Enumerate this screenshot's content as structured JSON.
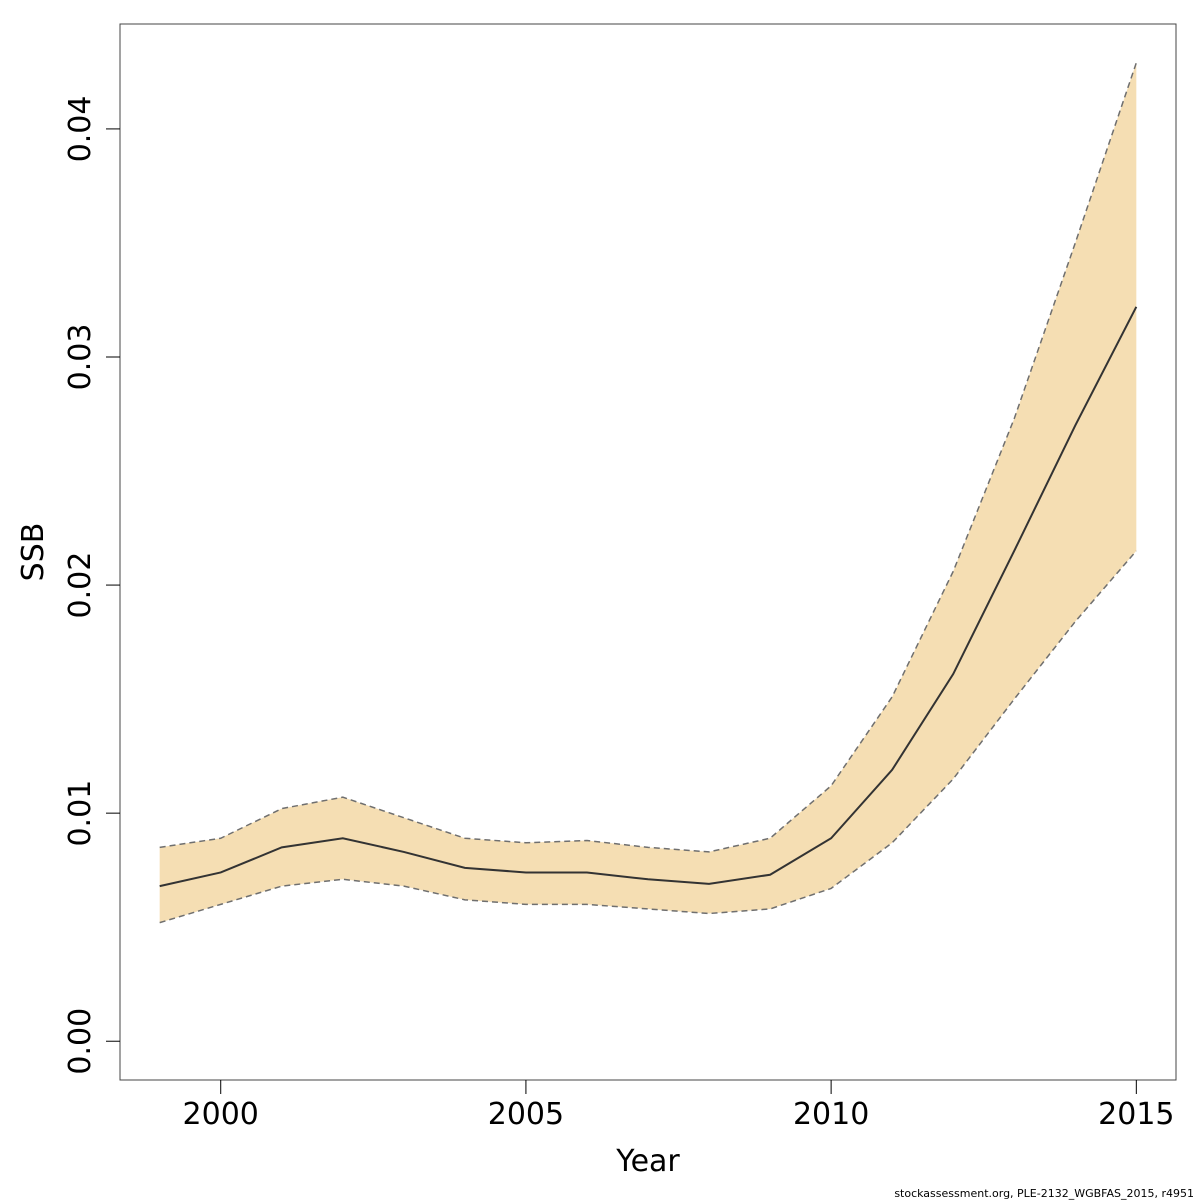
{
  "chart_data": {
    "type": "area",
    "title": "",
    "xlabel": "Year",
    "ylabel": "SSB",
    "xlim": [
      1998.35,
      2015.65
    ],
    "ylim": [
      -0.0017,
      0.0446
    ],
    "xticks": [
      2000,
      2005,
      2010,
      2015
    ],
    "yticks": [
      0.0,
      0.01,
      0.02,
      0.03,
      0.04
    ],
    "ytick_labels": [
      "0.00",
      "0.01",
      "0.02",
      "0.03",
      "0.04"
    ],
    "grid": false,
    "legend": "none",
    "x": [
      1999,
      2000,
      2001,
      2002,
      2003,
      2004,
      2005,
      2006,
      2007,
      2008,
      2009,
      2010,
      2011,
      2012,
      2013,
      2014,
      2015
    ],
    "series": [
      {
        "role": "estimate",
        "style": "solid",
        "values": [
          0.0068,
          0.0074,
          0.0085,
          0.0089,
          0.0083,
          0.0076,
          0.0074,
          0.0074,
          0.0071,
          0.0069,
          0.0073,
          0.0089,
          0.0119,
          0.0161,
          0.0215,
          0.027,
          0.0322
        ]
      },
      {
        "role": "upper",
        "style": "dashed",
        "values": [
          0.0085,
          0.0089,
          0.0102,
          0.0107,
          0.0098,
          0.0089,
          0.0087,
          0.0088,
          0.0085,
          0.0083,
          0.0089,
          0.0112,
          0.0151,
          0.0206,
          0.0273,
          0.035,
          0.0429
        ]
      },
      {
        "role": "lower",
        "style": "dashed",
        "values": [
          0.0052,
          0.006,
          0.0068,
          0.0071,
          0.0068,
          0.0062,
          0.006,
          0.006,
          0.0058,
          0.0056,
          0.0058,
          0.0067,
          0.0087,
          0.0115,
          0.015,
          0.0184,
          0.0215
        ]
      }
    ],
    "colors": {
      "band": "#f5deb3",
      "line": "#333333",
      "bound": "#6f6f6f",
      "axis": "#000000"
    }
  },
  "footnote": "stockassessment.org, PLE-2132_WGBFAS_2015, r4951"
}
